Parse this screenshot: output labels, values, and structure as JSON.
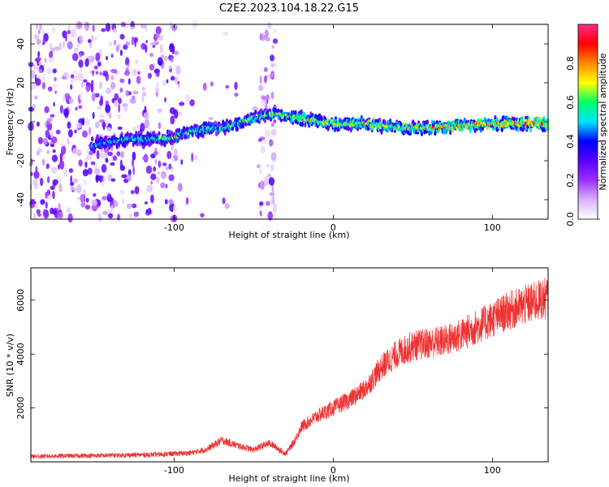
{
  "title": "C2E2.2023.104.18.22.G15",
  "colors": {
    "snr_line": "#ee3333",
    "colormap": [
      "#ffffff",
      "#d9b3ff",
      "#9b30ff",
      "#5a00ff",
      "#0000ff",
      "#00e5ff",
      "#00ff66",
      "#ffff00",
      "#ff8800",
      "#ff0000",
      "#ff2a8a"
    ]
  },
  "chart_data": [
    {
      "type": "heatmap",
      "panel": "top",
      "title": "C2E2.2023.104.18.22.G15",
      "xlabel": "Height of straight line (km)",
      "ylabel": "Frequency (Hz)",
      "xlim": [
        -190,
        135
      ],
      "ylim": [
        -50,
        50
      ],
      "xticks": [
        -100,
        0,
        100
      ],
      "xtick_labels": [
        "-100",
        "0",
        "100"
      ],
      "yticks": [
        -40,
        -20,
        0,
        20,
        40
      ],
      "ytick_labels": [
        "-40",
        "-20",
        "0",
        "20",
        "40"
      ],
      "colorbar": {
        "label": "Normalized spectral amplitude",
        "range": [
          0,
          1
        ],
        "ticks": [
          0.0,
          0.2,
          0.4,
          0.6,
          0.8
        ],
        "tick_labels": [
          "0.0",
          "0.2",
          "0.4",
          "0.6",
          "0.8"
        ]
      },
      "ridge_frequency": {
        "x": [
          -150,
          -130,
          -110,
          -100,
          -90,
          -80,
          -70,
          -60,
          -50,
          -40,
          -30,
          -20,
          -10,
          0,
          10,
          20,
          30,
          40,
          50,
          60,
          80,
          100,
          120,
          135
        ],
        "y": [
          -12,
          -9,
          -9,
          -8,
          -5,
          -4,
          -3,
          -1,
          2,
          4,
          3,
          2,
          0,
          -1,
          -1,
          -1,
          -2,
          -3,
          -3,
          -3,
          -2,
          -1,
          -1,
          -1
        ]
      }
    },
    {
      "type": "line",
      "panel": "bottom",
      "xlabel": "Height of straight line (km)",
      "ylabel": "SNR (10 * v/v)",
      "xlim": [
        -190,
        135
      ],
      "ylim": [
        0,
        7200
      ],
      "xticks": [
        -100,
        0,
        100
      ],
      "xtick_labels": [
        "-100",
        "0",
        "100"
      ],
      "yticks": [
        2000,
        4000,
        6000
      ],
      "ytick_labels": [
        "2000",
        "4000",
        "6000"
      ],
      "series": [
        {
          "x": [
            -190,
            -170,
            -150,
            -130,
            -110,
            -90,
            -80,
            -70,
            -60,
            -50,
            -40,
            -35,
            -30,
            -25,
            -20,
            -10,
            0,
            10,
            20,
            30,
            40,
            50,
            60,
            70,
            80,
            90,
            100,
            110,
            120,
            135
          ],
          "y": [
            200,
            220,
            230,
            250,
            270,
            330,
            450,
            800,
            600,
            450,
            700,
            500,
            300,
            700,
            1300,
            1700,
            2000,
            2300,
            2700,
            3500,
            4000,
            4300,
            4400,
            4500,
            4700,
            5000,
            5300,
            5600,
            5800,
            6100
          ]
        }
      ]
    }
  ]
}
